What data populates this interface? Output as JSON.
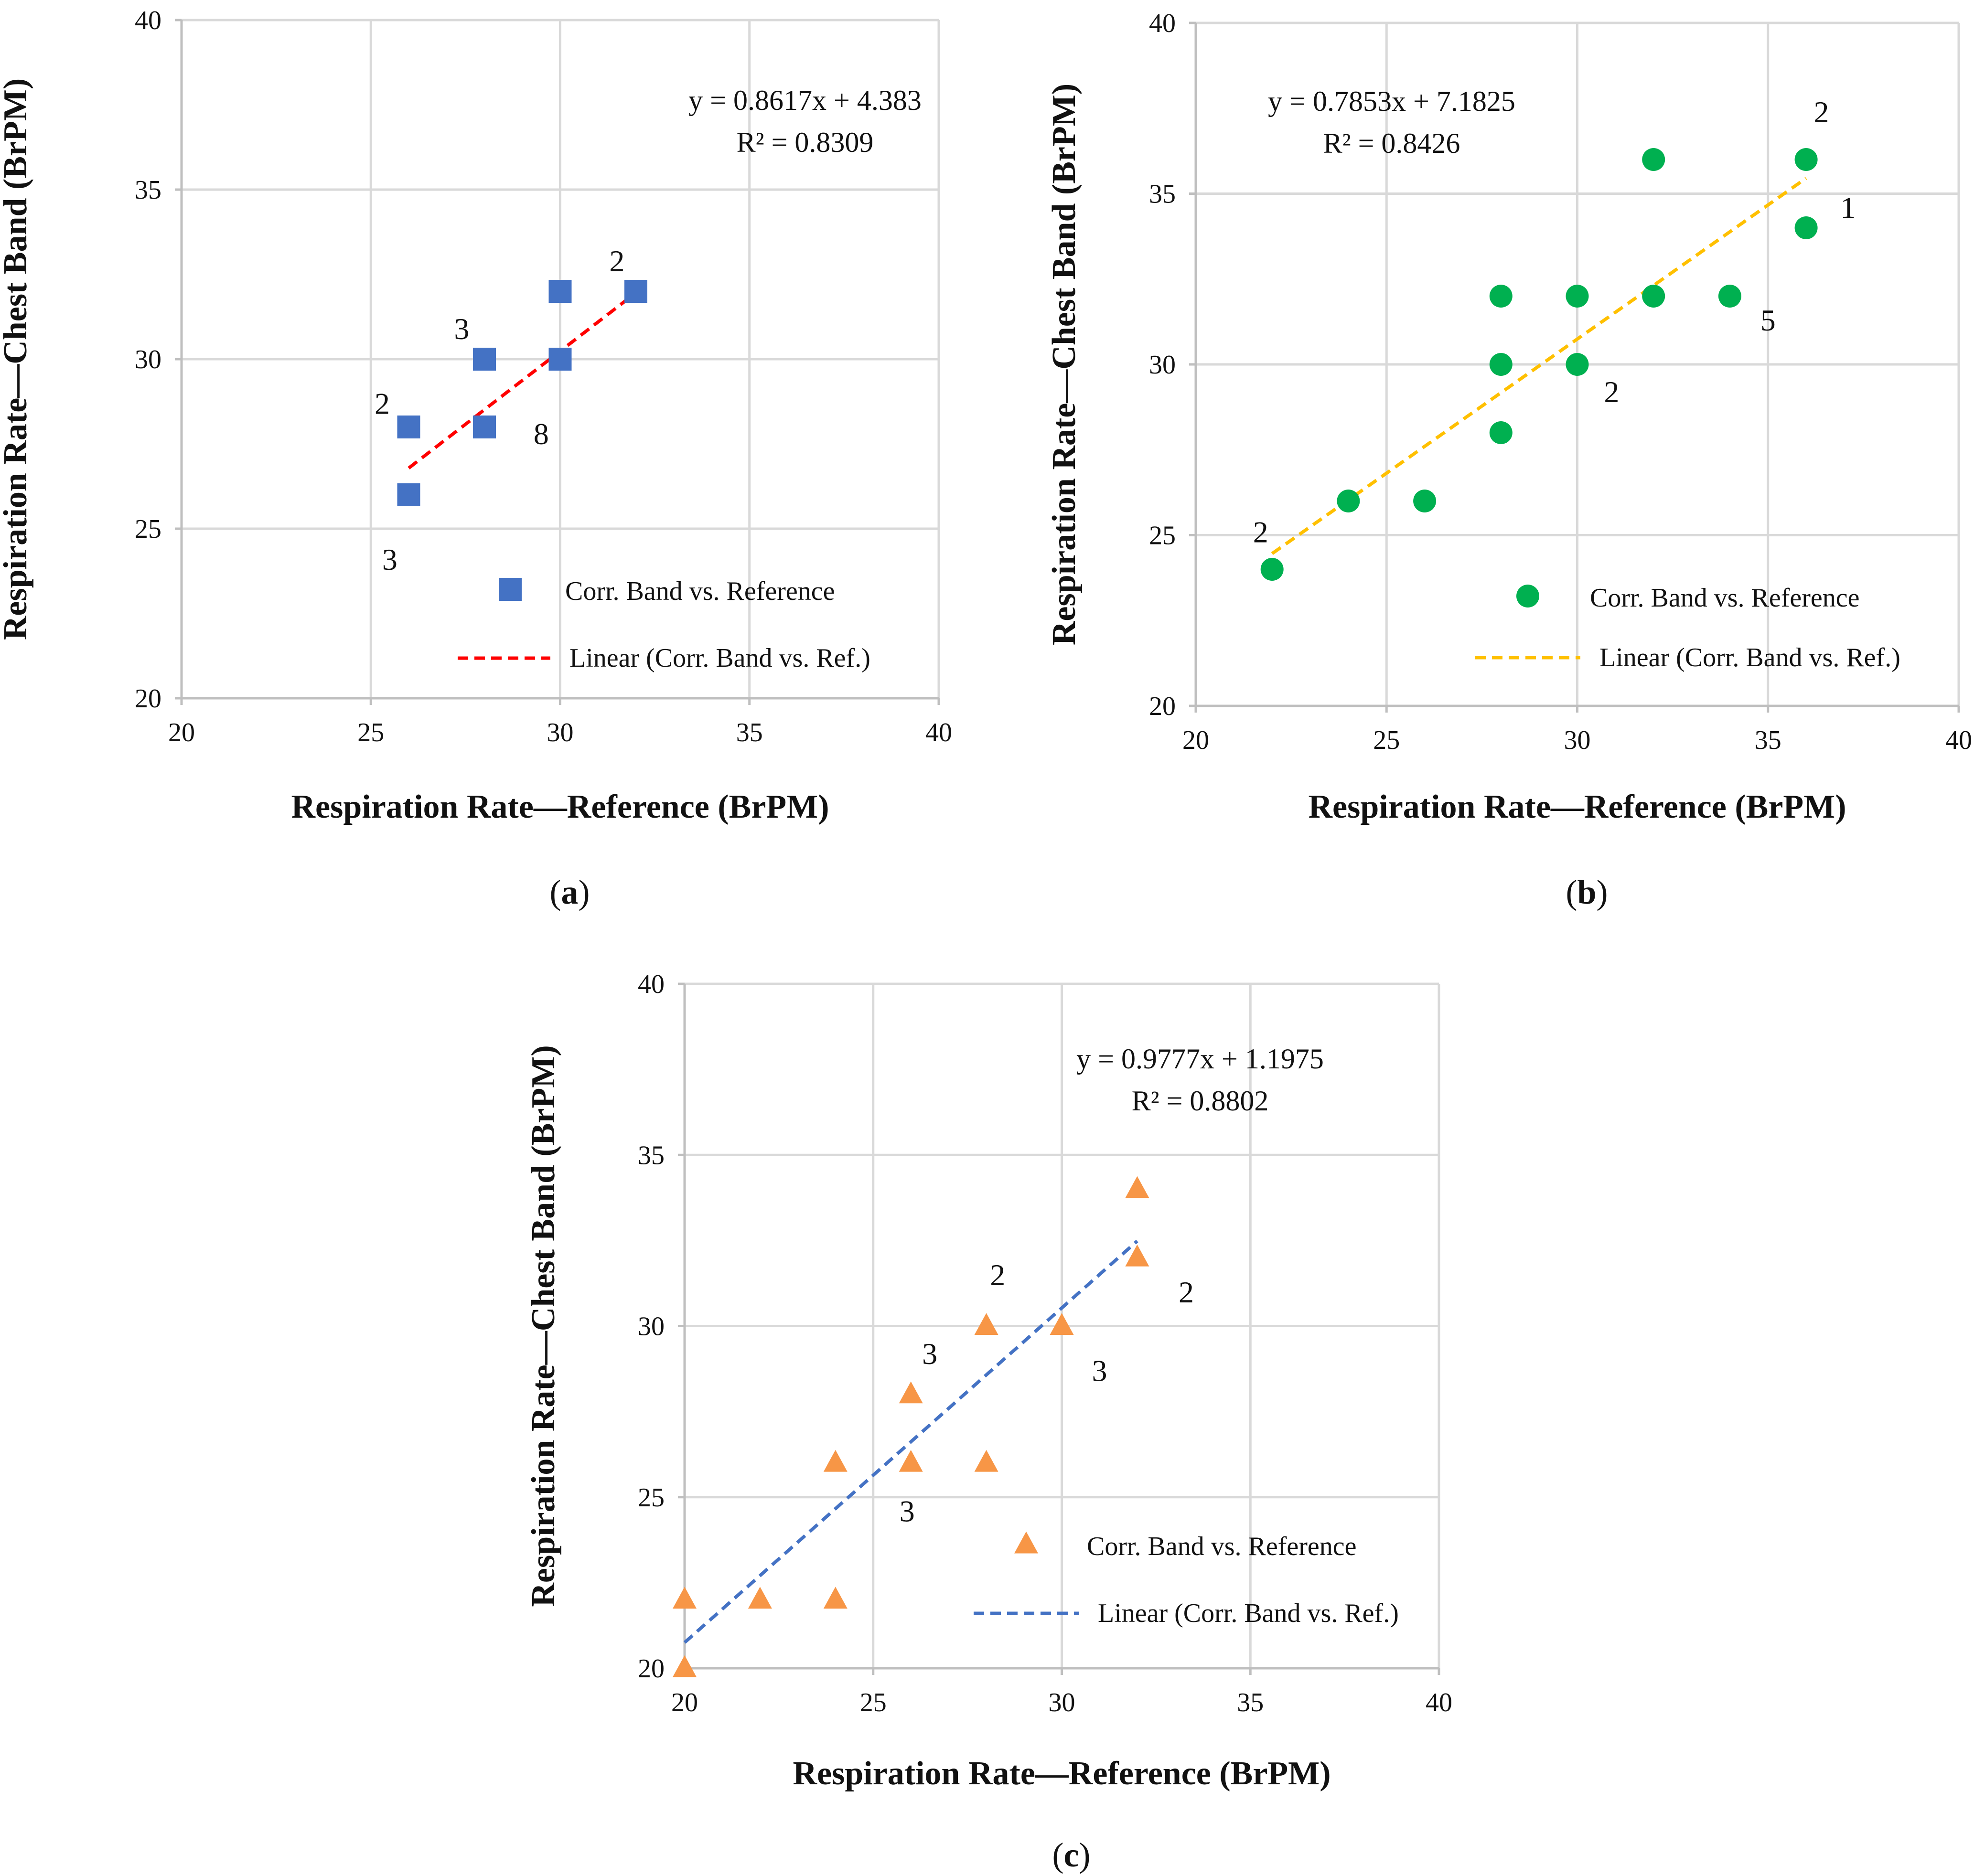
{
  "chart_data": [
    {
      "id": "a",
      "type": "scatter",
      "caption": "(a)",
      "caption_open": "(",
      "caption_letter": "a",
      "caption_close": ")",
      "xlabel": "Respiration Rate—Reference (BrPM)",
      "ylabel": "Respiration Rate—Chest Band (BrPM)",
      "xlim": [
        20,
        40
      ],
      "ylim": [
        20,
        40
      ],
      "xticks": [
        20,
        25,
        30,
        35,
        40
      ],
      "yticks": [
        20,
        25,
        30,
        35,
        40
      ],
      "grid": true,
      "marker": "square",
      "marker_color": "#4472C4",
      "trend_color": "#FF0000",
      "equation": "y = 0.8617x + 4.383",
      "r_squared": "R² = 0.8309",
      "trend": {
        "slope": 0.8617,
        "intercept": 4.383,
        "x_range": [
          26,
          32
        ]
      },
      "points": [
        {
          "x": 26,
          "y": 28
        },
        {
          "x": 26,
          "y": 26
        },
        {
          "x": 28,
          "y": 30
        },
        {
          "x": 28,
          "y": 28
        },
        {
          "x": 30,
          "y": 32
        },
        {
          "x": 30,
          "y": 30
        },
        {
          "x": 32,
          "y": 32
        }
      ],
      "annotations": [
        {
          "text": "2",
          "x": 25.3,
          "y": 28.7
        },
        {
          "text": "3",
          "x": 27.4,
          "y": 30.9
        },
        {
          "text": "2",
          "x": 31.5,
          "y": 32.9
        },
        {
          "text": "8",
          "x": 29.5,
          "y": 27.8
        },
        {
          "text": "3",
          "x": 25.5,
          "y": 24.1
        }
      ],
      "legend": {
        "series_label": "Corr. Band vs. Reference",
        "trend_label": "Linear (Corr. Band vs. Ref.)",
        "position": "bottom-right"
      }
    },
    {
      "id": "b",
      "type": "scatter",
      "caption": "(b)",
      "caption_open": "(",
      "caption_letter": "b",
      "caption_close": ")",
      "xlabel": "Respiration Rate—Reference (BrPM)",
      "ylabel": "Respiration Rate—Chest Band (BrPM)",
      "xlim": [
        20,
        40
      ],
      "ylim": [
        20,
        40
      ],
      "xticks": [
        20,
        25,
        30,
        35,
        40
      ],
      "yticks": [
        20,
        25,
        30,
        35,
        40
      ],
      "grid": true,
      "marker": "circle",
      "marker_color": "#00B050",
      "trend_color": "#FFC000",
      "equation": "y = 0.7853x + 7.1825",
      "r_squared": "R² = 0.8426",
      "trend": {
        "slope": 0.7853,
        "intercept": 7.1825,
        "x_range": [
          22,
          36
        ]
      },
      "points": [
        {
          "x": 22,
          "y": 24
        },
        {
          "x": 24,
          "y": 26
        },
        {
          "x": 26,
          "y": 26
        },
        {
          "x": 28,
          "y": 32
        },
        {
          "x": 28,
          "y": 30
        },
        {
          "x": 28,
          "y": 28
        },
        {
          "x": 30,
          "y": 32
        },
        {
          "x": 30,
          "y": 30
        },
        {
          "x": 32,
          "y": 36
        },
        {
          "x": 32,
          "y": 32
        },
        {
          "x": 34,
          "y": 32
        },
        {
          "x": 36,
          "y": 36
        },
        {
          "x": 36,
          "y": 34
        }
      ],
      "annotations": [
        {
          "text": "2",
          "x": 21.7,
          "y": 25.1
        },
        {
          "text": "2",
          "x": 36.4,
          "y": 37.4
        },
        {
          "text": "1",
          "x": 37.1,
          "y": 34.6
        },
        {
          "text": "5",
          "x": 35.0,
          "y": 31.3
        },
        {
          "text": "2",
          "x": 30.9,
          "y": 29.2
        }
      ],
      "legend": {
        "series_label": "Corr. Band vs. Reference",
        "trend_label": "Linear (Corr. Band vs. Ref.)",
        "position": "bottom-right"
      }
    },
    {
      "id": "c",
      "type": "scatter",
      "caption": "(c)",
      "caption_open": "(",
      "caption_letter": "c",
      "caption_close": ")",
      "xlabel": "Respiration Rate—Reference (BrPM)",
      "ylabel": "Respiration Rate—Chest Band (BrPM)",
      "xlim": [
        20,
        40
      ],
      "ylim": [
        20,
        40
      ],
      "xticks": [
        20,
        25,
        30,
        35,
        40
      ],
      "yticks": [
        20,
        25,
        30,
        35,
        40
      ],
      "grid": true,
      "marker": "triangle",
      "marker_color": "#F79646",
      "trend_color": "#4472C4",
      "equation": "y = 0.9777x + 1.1975",
      "r_squared": "R² = 0.8802",
      "trend": {
        "slope": 0.9777,
        "intercept": 1.1975,
        "x_range": [
          20,
          32
        ]
      },
      "points": [
        {
          "x": 20,
          "y": 22
        },
        {
          "x": 20,
          "y": 20
        },
        {
          "x": 22,
          "y": 22
        },
        {
          "x": 24,
          "y": 26
        },
        {
          "x": 24,
          "y": 22
        },
        {
          "x": 26,
          "y": 28
        },
        {
          "x": 26,
          "y": 26
        },
        {
          "x": 28,
          "y": 30
        },
        {
          "x": 28,
          "y": 26
        },
        {
          "x": 30,
          "y": 30
        },
        {
          "x": 32,
          "y": 34
        },
        {
          "x": 32,
          "y": 32
        }
      ],
      "annotations": [
        {
          "text": "3",
          "x": 26.5,
          "y": 29.2
        },
        {
          "text": "2",
          "x": 28.3,
          "y": 31.5
        },
        {
          "text": "3",
          "x": 31.0,
          "y": 28.7
        },
        {
          "text": "2",
          "x": 33.3,
          "y": 31.0
        },
        {
          "text": "3",
          "x": 25.9,
          "y": 24.6
        }
      ],
      "legend": {
        "series_label": "Corr. Band vs. Reference",
        "trend_label": "Linear (Corr. Band vs. Ref.)",
        "position": "bottom-right"
      }
    }
  ]
}
